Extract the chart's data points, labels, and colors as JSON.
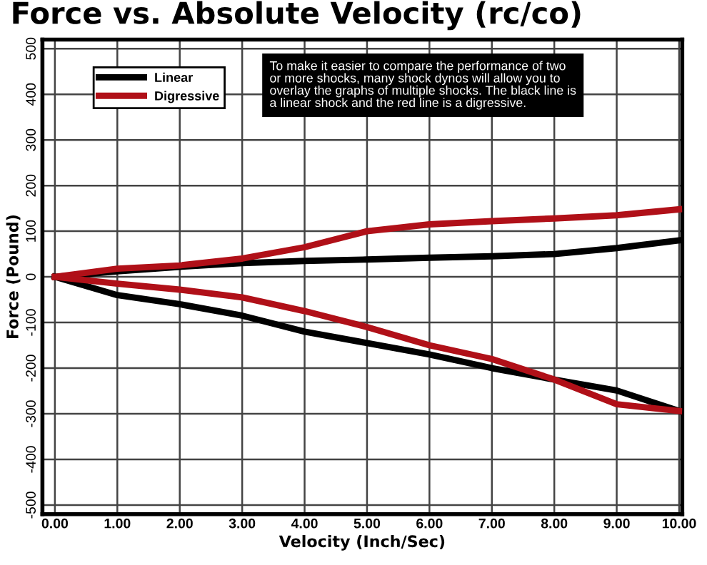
{
  "chart_data": {
    "type": "line",
    "title": "Force vs. Absolute Velocity (rc/co)",
    "xlabel": "Velocity (Inch/Sec)",
    "ylabel": "Force (Pound)",
    "x": [
      0,
      1,
      2,
      3,
      4,
      5,
      6,
      7,
      8,
      9,
      10
    ],
    "series": [
      {
        "name": "Linear",
        "color": "#000000",
        "values": [
          0,
          12,
          22,
          30,
          35,
          38,
          42,
          45,
          50,
          63,
          80
        ]
      },
      {
        "name": "Digressive",
        "color": "#b01018",
        "values": [
          0,
          18,
          25,
          40,
          65,
          100,
          115,
          122,
          128,
          135,
          148
        ]
      },
      {
        "color": "#000000",
        "values": [
          0,
          -40,
          -60,
          -85,
          -120,
          -145,
          -170,
          -200,
          -225,
          -249,
          -294
        ]
      },
      {
        "color": "#b01018",
        "values": [
          0,
          -15,
          -28,
          -45,
          -75,
          -110,
          -150,
          -180,
          -225,
          -279,
          -294
        ]
      }
    ],
    "xlim": [
      -0.2,
      10.05
    ],
    "xticks": [
      {
        "value": 0,
        "label": "0.00"
      },
      {
        "value": 1,
        "label": "1.00"
      },
      {
        "value": 2,
        "label": "2.00"
      },
      {
        "value": 3,
        "label": "3.00"
      },
      {
        "value": 4,
        "label": "4.00"
      },
      {
        "value": 5,
        "label": "5.00"
      },
      {
        "value": 6,
        "label": "6.00"
      },
      {
        "value": 7,
        "label": "7.00"
      },
      {
        "value": 8,
        "label": "8.00"
      },
      {
        "value": 9,
        "label": "9.00"
      },
      {
        "value": 10,
        "label": "10.00"
      }
    ],
    "ylim": [
      -520,
      520
    ],
    "yticks": [
      -500,
      -400,
      -300,
      -200,
      -100,
      0,
      100,
      200,
      300,
      400,
      500
    ],
    "grid": true,
    "legend": "top left",
    "line_style": "solid",
    "marker": "none",
    "annotations": [
      "To make it easier to compare the performance of two\nor more shocks, many shock dynos will allow you to\noverlay the graphs of multiple shocks. The black line is\na linear shock and the red line is a digressive."
    ]
  }
}
